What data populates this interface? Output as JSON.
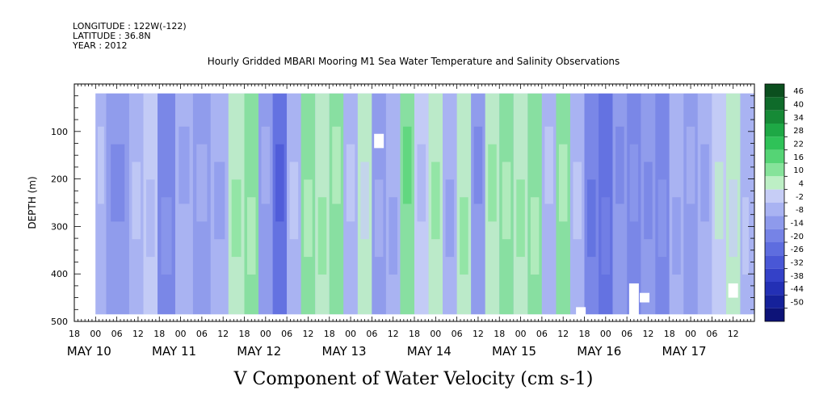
{
  "header": {
    "longitude": "LONGITUDE : 122W(-122)",
    "latitude": "LATITUDE : 36.8N",
    "year": "YEAR : 2012"
  },
  "chart_data": {
    "type": "heatmap",
    "title": "Hourly Gridded MBARI Mooring M1 Sea Water Temperature and Salinity Observations",
    "xlabel": "V Component of Water Velocity (cm s-1)",
    "ylabel": "DEPTH (m)",
    "x_range": [
      "MAY 09 18:00",
      "MAY 17 18:00"
    ],
    "ylim": [
      500,
      0
    ],
    "y_ticks": [
      100,
      200,
      300,
      400,
      500
    ],
    "x_hour_ticks": [
      "18",
      "00",
      "06",
      "12",
      "18",
      "00",
      "06",
      "12",
      "18",
      "00",
      "06",
      "12",
      "18",
      "00",
      "06",
      "12",
      "18",
      "00",
      "06",
      "12",
      "18",
      "00",
      "06",
      "12",
      "18",
      "00",
      "06",
      "12",
      "18",
      "00",
      "06",
      "12"
    ],
    "day_labels": [
      "MAY 10",
      "MAY 11",
      "MAY 12",
      "MAY 13",
      "MAY 14",
      "MAY 15",
      "MAY 16",
      "MAY 17"
    ],
    "colorbar_levels": [
      46,
      40,
      34,
      28,
      22,
      16,
      10,
      4,
      -2,
      -8,
      -14,
      -20,
      -26,
      -32,
      -38,
      -44,
      -50
    ],
    "colorbar_colors": [
      "#0b4f1e",
      "#0f6b2a",
      "#168a36",
      "#1ea845",
      "#2fc258",
      "#55d475",
      "#86e39a",
      "#bdefc5",
      "#c6cdf6",
      "#a9b3f2",
      "#8e9aec",
      "#7683e6",
      "#5e6ddf",
      "#4957d6",
      "#3441c8",
      "#2330b5",
      "#15219a",
      "#0d1378"
    ],
    "data_extent_hours": [
      6,
      192
    ],
    "data_extent_depth": [
      20,
      485
    ],
    "bands": [
      {
        "hour": 5,
        "value": -6
      },
      {
        "hour": 13,
        "value": -14
      },
      {
        "hour": 18,
        "value": -8
      },
      {
        "hour": 21,
        "value": 2
      },
      {
        "hour": 26,
        "value": -16
      },
      {
        "hour": 31,
        "value": -6
      },
      {
        "hour": 36,
        "value": -12
      },
      {
        "hour": 41,
        "value": -4
      },
      {
        "hour": 46,
        "value": 6
      },
      {
        "hour": 50,
        "value": 12
      },
      {
        "hour": 54,
        "value": -10
      },
      {
        "hour": 58,
        "value": -22
      },
      {
        "hour": 62,
        "value": -8
      },
      {
        "hour": 66,
        "value": 14
      },
      {
        "hour": 70,
        "value": 6
      },
      {
        "hour": 74,
        "value": 12
      },
      {
        "hour": 78,
        "value": -8
      },
      {
        "hour": 82,
        "value": 4
      },
      {
        "hour": 86,
        "value": -14
      },
      {
        "hour": 90,
        "value": -4
      },
      {
        "hour": 94,
        "value": 10
      },
      {
        "hour": 98,
        "value": 2
      },
      {
        "hour": 102,
        "value": 6
      },
      {
        "hour": 106,
        "value": -8
      },
      {
        "hour": 110,
        "value": 4
      },
      {
        "hour": 114,
        "value": -12
      },
      {
        "hour": 118,
        "value": 8
      },
      {
        "hour": 122,
        "value": 14
      },
      {
        "hour": 126,
        "value": 4
      },
      {
        "hour": 130,
        "value": 10
      },
      {
        "hour": 134,
        "value": -6
      },
      {
        "hour": 138,
        "value": 12
      },
      {
        "hour": 142,
        "value": -4
      },
      {
        "hour": 146,
        "value": -18
      },
      {
        "hour": 150,
        "value": -24
      },
      {
        "hour": 154,
        "value": -14
      },
      {
        "hour": 158,
        "value": -20
      },
      {
        "hour": 162,
        "value": -10
      },
      {
        "hour": 166,
        "value": -16
      },
      {
        "hour": 170,
        "value": -6
      },
      {
        "hour": 174,
        "value": -12
      },
      {
        "hour": 178,
        "value": -4
      },
      {
        "hour": 182,
        "value": 2
      },
      {
        "hour": 186,
        "value": 4
      },
      {
        "hour": 190,
        "value": -6
      }
    ],
    "missing_cells": [
      {
        "hour": 86,
        "depth_from": 105,
        "depth_to": 135
      },
      {
        "hour": 143,
        "depth_from": 470,
        "depth_to": 490
      },
      {
        "hour": 158,
        "depth_from": 420,
        "depth_to": 490
      },
      {
        "hour": 161,
        "depth_from": 440,
        "depth_to": 460
      },
      {
        "hour": 186,
        "depth_from": 420,
        "depth_to": 450
      }
    ],
    "grid": false,
    "legend": "right colorbar"
  }
}
